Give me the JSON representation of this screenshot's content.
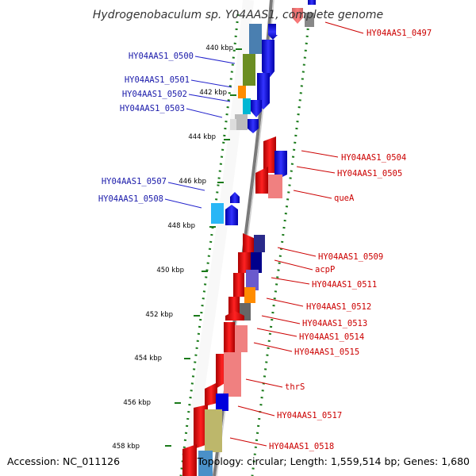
{
  "title": "Hydrogenobaculum sp. Y04AAS1, complete genome",
  "footer": {
    "accession": "Accession: NC_011126",
    "topology": "Topology: circular; Length: 1,559,514 bp; Genes: 1,680"
  },
  "colors": {
    "forward_strand": "#0000ee",
    "reverse_strand": "#ee0000",
    "left_label": "#1a1aaa",
    "right_label": "#cc0000",
    "kbp_tick": "#1a7a1a"
  },
  "scale_ticks": [
    "440 kbp",
    "442 kbp",
    "444 kbp",
    "446 kbp",
    "448 kbp",
    "450 kbp",
    "452 kbp",
    "454 kbp",
    "456 kbp",
    "458 kbp"
  ],
  "left_labels": [
    "HY04AAS1_0500",
    "HY04AAS1_0501",
    "HY04AAS1_0502",
    "HY04AAS1_0503",
    "HY04AAS1_0507",
    "HY04AAS1_0508"
  ],
  "right_labels": [
    "HY04AAS1_0497",
    "HY04AAS1_0504",
    "HY04AAS1_0505",
    "queA",
    "HY04AAS1_0509",
    "acpP",
    "HY04AAS1_0511",
    "HY04AAS1_0512",
    "HY04AAS1_0513",
    "HY04AAS1_0514",
    "HY04AAS1_0515",
    "thrS",
    "HY04AAS1_0517",
    "HY04AAS1_0518"
  ]
}
